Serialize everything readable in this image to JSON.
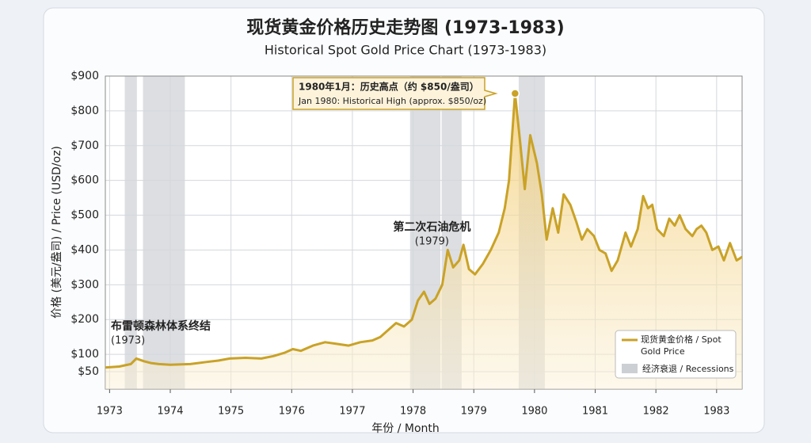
{
  "chart_data": {
    "type": "area",
    "title": "现货黄金价格历史走势图 (1973-1983)",
    "subtitle": "Historical Spot Gold Price Chart (1973-1983)",
    "x_label": "年份 / Month",
    "y_label": "价格 (美元/盎司) / Price (USD/oz)",
    "xlim": [
      1972.93,
      1983.42
    ],
    "xticks": [
      1973,
      1974,
      1975,
      1976,
      1977,
      1978,
      1979,
      1980,
      1981,
      1982,
      1983
    ],
    "ylim": [
      0,
      900
    ],
    "yticks": [
      {
        "value": 50,
        "label": "$50"
      },
      {
        "value": 100,
        "label": "$100"
      },
      {
        "value": 200,
        "label": "$200"
      },
      {
        "value": 300,
        "label": "$300"
      },
      {
        "value": 400,
        "label": "$400"
      },
      {
        "value": 500,
        "label": "$500"
      },
      {
        "value": 600,
        "label": "$600"
      },
      {
        "value": 700,
        "label": "$700"
      },
      {
        "value": 800,
        "label": "$800"
      },
      {
        "value": 900,
        "label": "$900"
      }
    ],
    "grid": true,
    "legend": "lower right",
    "series": [
      {
        "name": "现货黄金价格 / Spot Gold Price",
        "color": "#c9a227",
        "x": [
          1972.93,
          1973.16,
          1973.35,
          1973.44,
          1973.57,
          1973.68,
          1973.81,
          1974.0,
          1974.33,
          1974.59,
          1974.79,
          1974.98,
          1975.24,
          1975.5,
          1975.7,
          1975.89,
          1976.02,
          1976.15,
          1976.35,
          1976.55,
          1976.74,
          1976.94,
          1977.13,
          1977.33,
          1977.46,
          1977.59,
          1977.72,
          1977.85,
          1977.98,
          1978.08,
          1978.18,
          1978.27,
          1978.37,
          1978.48,
          1978.57,
          1978.66,
          1978.76,
          1978.83,
          1978.92,
          1979.02,
          1979.15,
          1979.28,
          1979.41,
          1979.51,
          1979.58,
          1979.68,
          1979.77,
          1979.84,
          1979.93,
          1980.04,
          1980.12,
          1980.2,
          1980.3,
          1980.39,
          1980.48,
          1980.59,
          1980.69,
          1980.78,
          1980.87,
          1980.98,
          1981.07,
          1981.17,
          1981.27,
          1981.37,
          1981.5,
          1981.59,
          1981.7,
          1981.79,
          1981.87,
          1981.94,
          1982.02,
          1982.13,
          1982.22,
          1982.31,
          1982.39,
          1982.49,
          1982.6,
          1982.67,
          1982.75,
          1982.83,
          1982.93,
          1983.03,
          1983.12,
          1983.22,
          1983.33,
          1983.42
        ],
        "values": [
          62,
          65,
          72,
          88,
          80,
          75,
          72,
          70,
          72,
          78,
          82,
          88,
          90,
          88,
          95,
          105,
          115,
          110,
          125,
          135,
          130,
          125,
          135,
          140,
          150,
          170,
          190,
          180,
          200,
          255,
          280,
          245,
          260,
          300,
          400,
          350,
          370,
          415,
          345,
          330,
          360,
          400,
          450,
          520,
          600,
          850,
          700,
          575,
          730,
          650,
          560,
          430,
          520,
          450,
          560,
          530,
          480,
          430,
          460,
          440,
          400,
          390,
          340,
          370,
          450,
          410,
          460,
          555,
          520,
          530,
          460,
          440,
          490,
          470,
          500,
          460,
          440,
          460,
          470,
          450,
          400,
          410,
          370,
          420,
          370,
          380
        ]
      }
    ],
    "recessions": {
      "name": "经济衰退 / Recessions",
      "ranges": [
        [
          1973.25,
          1973.45
        ],
        [
          1973.55,
          1974.24
        ],
        [
          1977.95,
          1978.45
        ],
        [
          1978.47,
          1978.8
        ],
        [
          1979.74,
          1980.17
        ]
      ]
    },
    "annotations": [
      {
        "text": "1980年1月：历史高点（约 $850/盎司）",
        "subtext": "Jan 1980: Historical High (approx. $850/oz)",
        "x": 1979.68,
        "y": 850
      },
      {
        "text": "第二次石油危机",
        "subtext": "(1979)",
        "x": 1978.18,
        "y": 440
      },
      {
        "text": "布雷顿森林体系终结",
        "subtext": "(1973)",
        "x": 1973.0,
        "y": 140
      }
    ]
  }
}
